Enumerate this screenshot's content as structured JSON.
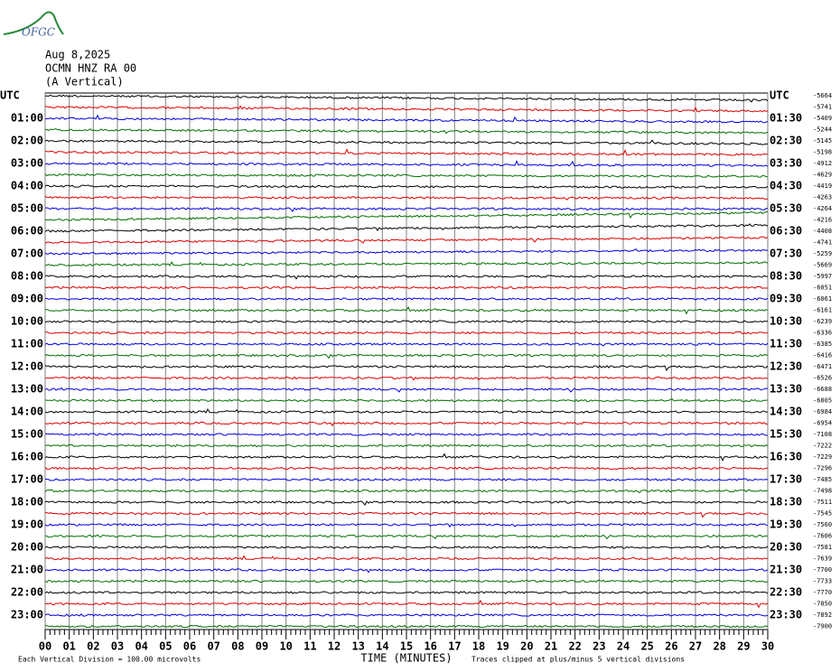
{
  "header": {
    "logo": "OFGC",
    "date": "Aug 8,2025",
    "station": "OCMN HNZ RA 00",
    "component": "(A Vertical)"
  },
  "left_labels": [
    "UTC",
    "01:00",
    "02:00",
    "03:00",
    "04:00",
    "05:00",
    "06:00",
    "07:00",
    "08:00",
    "09:00",
    "10:00",
    "11:00",
    "12:00",
    "13:00",
    "14:00",
    "15:00",
    "16:00",
    "17:00",
    "18:00",
    "19:00",
    "20:00",
    "21:00",
    "22:00",
    "23:00"
  ],
  "right_labels": [
    "UTC",
    "01:30",
    "02:30",
    "03:30",
    "04:30",
    "05:30",
    "06:30",
    "07:30",
    "08:30",
    "09:30",
    "10:30",
    "11:30",
    "12:30",
    "13:30",
    "14:30",
    "15:30",
    "16:30",
    "17:30",
    "18:30",
    "19:30",
    "20:30",
    "21:30",
    "22:30",
    "23:30"
  ],
  "trace_offsets": [
    -5664,
    -5741,
    -5409,
    -5244,
    -5145,
    -5198,
    -4912,
    -4629,
    -4419,
    -4263,
    -4264,
    -4216,
    -4408,
    -4741,
    -5259,
    -5669,
    -5997,
    -6051,
    -6061,
    -6161,
    -6239,
    -6336,
    -6385,
    -6416,
    -6471,
    -6526,
    -6688,
    -6805,
    -6984,
    -6954,
    -7108,
    -7222,
    -7229,
    -7296,
    -7485,
    -7498,
    -7511,
    -7545,
    -7560,
    -7606,
    -7581,
    -7639,
    -7700,
    -7733,
    -7770,
    -7850,
    -7892,
    -7900
  ],
  "trace_colors": [
    "#000000",
    "#e00000",
    "#0000e0",
    "#007000"
  ],
  "x_axis": {
    "title": "TIME (MINUTES)",
    "ticks": [
      "00",
      "01",
      "02",
      "03",
      "04",
      "05",
      "06",
      "07",
      "08",
      "09",
      "10",
      "11",
      "12",
      "13",
      "14",
      "15",
      "16",
      "17",
      "18",
      "19",
      "20",
      "21",
      "22",
      "23",
      "24",
      "25",
      "26",
      "27",
      "28",
      "29",
      "30"
    ]
  },
  "footer": {
    "scale": "Each Vertical Division =  100.00 microvolts",
    "clip": "Traces clipped at plus/minus 5 vertical divisions"
  }
}
